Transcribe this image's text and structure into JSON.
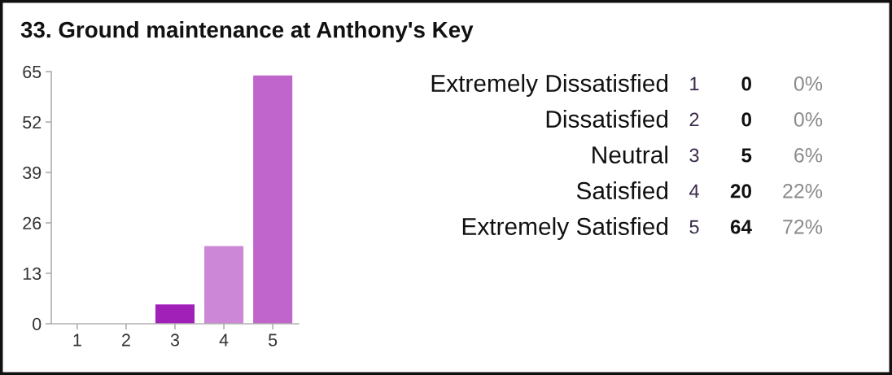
{
  "chart_data": {
    "type": "bar",
    "title": "33. Ground maintenance at Anthony's Key",
    "categories": [
      "1",
      "2",
      "3",
      "4",
      "5"
    ],
    "values": [
      0,
      0,
      5,
      20,
      64
    ],
    "colors": [
      "#8e24aa",
      "#9c27b0",
      "#a020b8",
      "#cc88d6",
      "#c065cc"
    ],
    "ylim": [
      0,
      65
    ],
    "yticks": [
      0,
      13,
      26,
      39,
      52,
      65
    ],
    "annotations": [
      "Extremely Dissatisfied",
      "0",
      "0%",
      "Dissatisfied",
      "0",
      "0%",
      "Neutral",
      "5",
      "6%",
      "Satisfied",
      "20",
      "22%",
      "Extremely Satisfied",
      "64",
      "72%"
    ]
  }
}
